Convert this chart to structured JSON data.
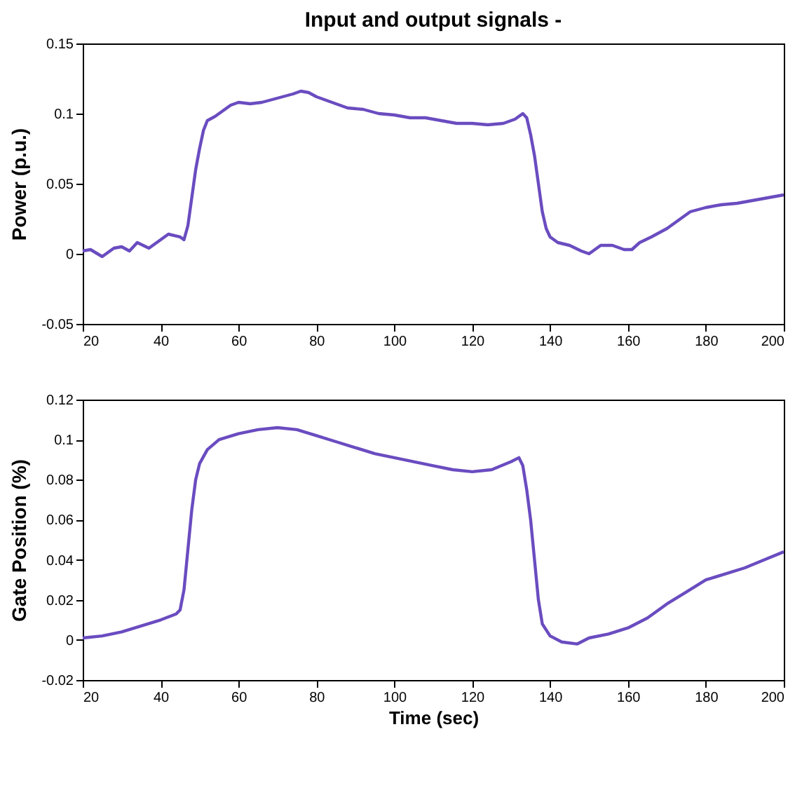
{
  "chart_data": [
    {
      "type": "line",
      "title": "Input and output signals -",
      "ylabel": "Power (p.u.)",
      "color": "#6a4cc0",
      "xlim": [
        20,
        200
      ],
      "ylim": [
        -0.05,
        0.15
      ],
      "xticks": [
        20,
        40,
        60,
        80,
        100,
        120,
        140,
        160,
        180,
        200
      ],
      "yticks": [
        -0.05,
        0,
        0.05,
        0.1,
        0.15
      ],
      "x": [
        20,
        22,
        25,
        28,
        30,
        32,
        34,
        37,
        40,
        42,
        45,
        46,
        47,
        48,
        49,
        50,
        51,
        52,
        54,
        56,
        58,
        60,
        63,
        66,
        70,
        74,
        76,
        78,
        80,
        84,
        88,
        92,
        96,
        100,
        104,
        108,
        112,
        116,
        120,
        124,
        128,
        131,
        133,
        134,
        135,
        136,
        137,
        138,
        139,
        140,
        142,
        145,
        148,
        150,
        153,
        156,
        159,
        161,
        163,
        166,
        170,
        173,
        176,
        180,
        184,
        188,
        192,
        196,
        200
      ],
      "values": [
        0.002,
        0.003,
        -0.002,
        0.004,
        0.005,
        0.002,
        0.008,
        0.004,
        0.01,
        0.014,
        0.012,
        0.01,
        0.02,
        0.04,
        0.06,
        0.075,
        0.088,
        0.095,
        0.098,
        0.102,
        0.106,
        0.108,
        0.107,
        0.108,
        0.111,
        0.114,
        0.116,
        0.115,
        0.112,
        0.108,
        0.104,
        0.103,
        0.1,
        0.099,
        0.097,
        0.097,
        0.095,
        0.093,
        0.093,
        0.092,
        0.093,
        0.096,
        0.1,
        0.097,
        0.085,
        0.07,
        0.05,
        0.03,
        0.018,
        0.012,
        0.008,
        0.006,
        0.002,
        0.0,
        0.006,
        0.006,
        0.003,
        0.003,
        0.008,
        0.012,
        0.018,
        0.024,
        0.03,
        0.033,
        0.035,
        0.036,
        0.038,
        0.04,
        0.042
      ]
    },
    {
      "type": "line",
      "xlabel": "Time (sec)",
      "ylabel": "Gate Position (%)",
      "color": "#6a4cc0",
      "xlim": [
        20,
        200
      ],
      "ylim": [
        -0.02,
        0.12
      ],
      "xticks": [
        20,
        40,
        60,
        80,
        100,
        120,
        140,
        160,
        180,
        200
      ],
      "yticks": [
        -0.02,
        0,
        0.02,
        0.04,
        0.06,
        0.08,
        0.1,
        0.12
      ],
      "x": [
        20,
        25,
        30,
        35,
        40,
        44,
        45,
        46,
        47,
        48,
        49,
        50,
        52,
        55,
        60,
        65,
        70,
        75,
        80,
        85,
        90,
        95,
        100,
        105,
        110,
        115,
        120,
        125,
        130,
        132,
        133,
        134,
        135,
        136,
        137,
        138,
        140,
        143,
        147,
        150,
        155,
        160,
        165,
        170,
        175,
        180,
        185,
        190,
        195,
        200
      ],
      "values": [
        0.001,
        0.002,
        0.004,
        0.007,
        0.01,
        0.013,
        0.015,
        0.025,
        0.045,
        0.065,
        0.08,
        0.088,
        0.095,
        0.1,
        0.103,
        0.105,
        0.106,
        0.105,
        0.102,
        0.099,
        0.096,
        0.093,
        0.091,
        0.089,
        0.087,
        0.085,
        0.084,
        0.085,
        0.089,
        0.091,
        0.087,
        0.075,
        0.06,
        0.04,
        0.02,
        0.008,
        0.002,
        -0.001,
        -0.002,
        0.001,
        0.003,
        0.006,
        0.011,
        0.018,
        0.024,
        0.03,
        0.033,
        0.036,
        0.04,
        0.044
      ]
    }
  ]
}
